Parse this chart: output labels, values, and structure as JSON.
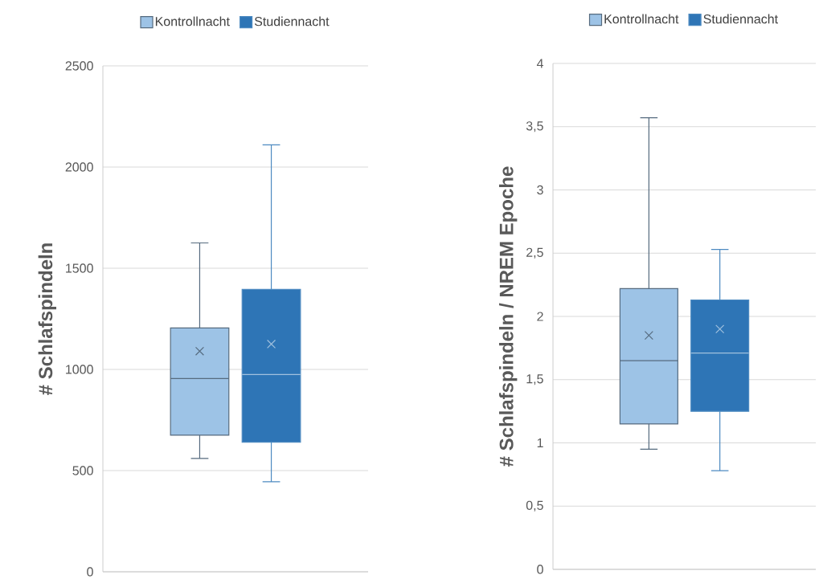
{
  "chart_data": [
    {
      "type": "box",
      "ylabel": "# Schlafspindeln",
      "categories": [
        null
      ],
      "series": [
        {
          "name": "Kontrollnacht",
          "color": "#9dc3e6",
          "boxes": [
            {
              "low": 560,
              "q1": 675,
              "median": 955,
              "q3": 1205,
              "high": 1625,
              "mean": 1090
            }
          ]
        },
        {
          "name": "Studiennacht",
          "color": "#2e75b6",
          "boxes": [
            {
              "low": 445,
              "q1": 640,
              "median": 975,
              "q3": 1395,
              "high": 2110,
              "mean": 1125
            }
          ]
        }
      ],
      "ylim": [
        0,
        2500
      ],
      "yticks": [
        0,
        500,
        1000,
        1500,
        2000,
        2500
      ],
      "grid": "y",
      "legend": "top"
    },
    {
      "type": "box",
      "ylabel": "# Schlafspindeln / NREM Epoche",
      "categories": [
        null
      ],
      "series": [
        {
          "name": "Kontrollnacht",
          "color": "#9dc3e6",
          "boxes": [
            {
              "low": 0.95,
              "q1": 1.15,
              "median": 1.65,
              "q3": 2.22,
              "high": 3.57,
              "mean": 1.85
            }
          ]
        },
        {
          "name": "Studiennacht",
          "color": "#2e75b6",
          "boxes": [
            {
              "low": 0.78,
              "q1": 1.25,
              "median": 1.71,
              "q3": 2.13,
              "high": 2.53,
              "mean": 1.9
            }
          ]
        }
      ],
      "ylim": [
        0,
        4
      ],
      "yticks": [
        0,
        {
          "value": 0.5,
          "label": "0,5"
        },
        1,
        {
          "value": 1.5,
          "label": "1,5"
        },
        2,
        {
          "value": 2.5,
          "label": "2,5"
        },
        3,
        {
          "value": 3.5,
          "label": "3,5"
        },
        4
      ],
      "grid": "y",
      "legend": "top"
    }
  ]
}
